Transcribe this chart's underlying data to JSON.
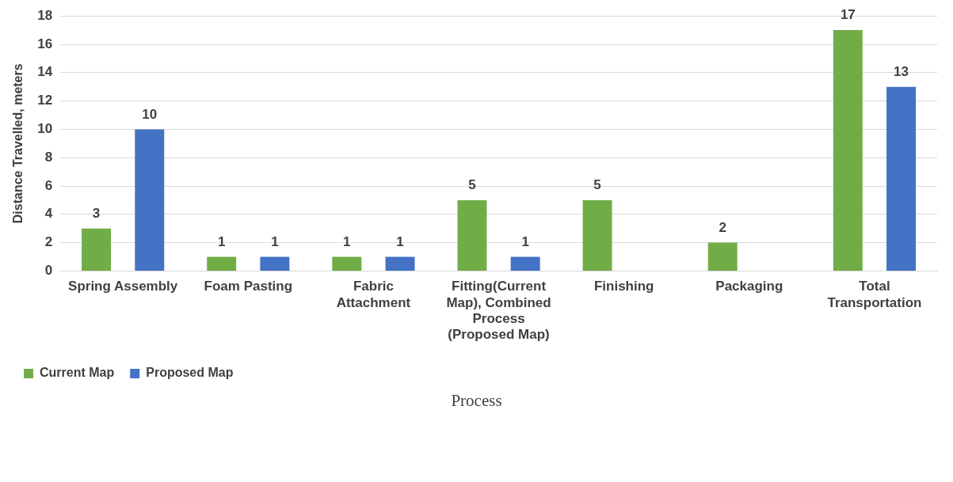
{
  "chart_data": {
    "type": "bar",
    "xlabel": "Process",
    "ylabel": "Distance Travelled, meters",
    "categories": [
      "Spring Assembly",
      "Foam Pasting",
      "Fabric Attachment",
      "Fitting(Current Map), Combined Process (Proposed Map)",
      "Finishing",
      "Packaging",
      "Total Transportation"
    ],
    "series": [
      {
        "name": "Current Map",
        "color": "#70ad47",
        "values": [
          3,
          1,
          1,
          5,
          5,
          2,
          17
        ]
      },
      {
        "name": "Proposed Map",
        "color": "#4472c4",
        "values": [
          10,
          1,
          1,
          1,
          null,
          null,
          13
        ]
      }
    ],
    "ylim": [
      0,
      18
    ],
    "yticks": [
      0,
      2,
      4,
      6,
      8,
      10,
      12,
      14,
      16,
      18
    ],
    "grid": "y",
    "legend": "bottom left",
    "data_labels": true
  }
}
